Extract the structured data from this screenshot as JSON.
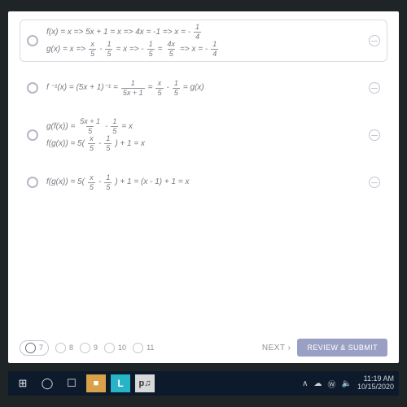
{
  "options": [
    {
      "boxed": true,
      "lines": [
        "f(x) = x => 5x + 1 = x => 4x = -1 => x = - {1|4}",
        "g(x) = x => {x|5} - {1|5} = x => - {1|5} = {4x|5} => x = - {1|4}"
      ]
    },
    {
      "boxed": false,
      "lines": [
        "f ⁻¹(x) = (5x + 1)⁻¹ = {1|5x + 1} = {x|5} - {1|5} = g(x)"
      ]
    },
    {
      "boxed": false,
      "lines": [
        "g(f(x)) = {5x + 1|5} - {1|5} = x",
        "f(g(x)) = 5( {x|5} - {1|5} ) + 1 = x"
      ]
    },
    {
      "boxed": false,
      "lines": [
        "f(g(x)) = 5( {x|5} - {1|5} ) + 1 = (x - 1) + 1 = x"
      ]
    }
  ],
  "nav": {
    "items": [
      "7",
      "8",
      "9",
      "10",
      "11"
    ],
    "active_index": 0,
    "next": "NEXT  ›",
    "submit": "REVIEW & SUBMIT"
  },
  "taskbar": {
    "icons": {
      "start": "⊞",
      "search": "◯",
      "task": "☐",
      "file": "■",
      "l": "L",
      "p": "p♫"
    },
    "tray": {
      "up": "∧",
      "cloud": "☁",
      "wifi": "Ⓦ",
      "vol": "🔈",
      "time": "11:19 AM",
      "date": "10/15/2020"
    }
  }
}
